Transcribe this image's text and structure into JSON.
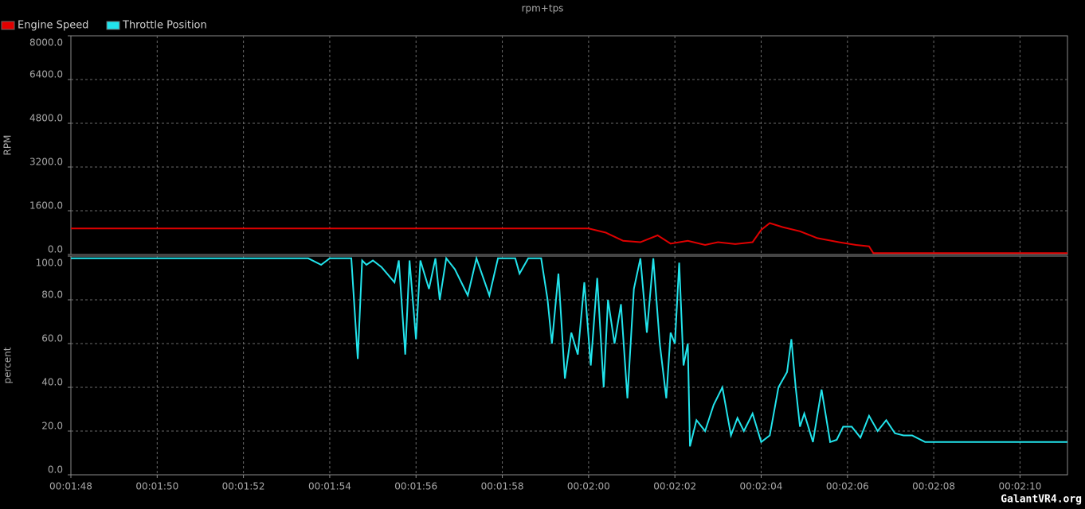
{
  "watermark": "GalantVR4.org",
  "chart_data": [
    {
      "type": "line",
      "title": "rpm+tps",
      "y_label": "RPM",
      "grid": true,
      "xlim": [
        108,
        131.1
      ],
      "ylim": [
        0,
        8000
      ],
      "yticks": [
        {
          "value": 0,
          "label": "0.0"
        },
        {
          "value": 1600,
          "label": "1600.0"
        },
        {
          "value": 3200,
          "label": "3200.0"
        },
        {
          "value": 4800,
          "label": "4800.0"
        },
        {
          "value": 6400,
          "label": "6400.0"
        },
        {
          "value": 8000,
          "label": "8000.0"
        }
      ],
      "x": [
        108,
        111,
        114,
        117,
        120,
        120.4,
        120.8,
        121.2,
        121.6,
        121.9,
        122.3,
        122.7,
        123.0,
        123.4,
        123.8,
        124.0,
        124.2,
        124.5,
        124.9,
        125.3,
        125.8,
        126.2,
        126.5,
        126.6,
        131.1
      ],
      "series": [
        {
          "name": "Engine Speed",
          "color": "#e00000",
          "values": [
            950,
            950,
            950,
            950,
            950,
            800,
            500,
            450,
            700,
            400,
            500,
            350,
            450,
            380,
            450,
            900,
            1150,
            1000,
            850,
            600,
            450,
            350,
            300,
            50,
            50
          ]
        }
      ]
    },
    {
      "type": "line",
      "y_label": "percent",
      "grid": true,
      "xlim": [
        108,
        131.1
      ],
      "xticks": [
        {
          "value": 108,
          "label": "00:01:48"
        },
        {
          "value": 110,
          "label": "00:01:50"
        },
        {
          "value": 112,
          "label": "00:01:52"
        },
        {
          "value": 114,
          "label": "00:01:54"
        },
        {
          "value": 116,
          "label": "00:01:56"
        },
        {
          "value": 118,
          "label": "00:01:58"
        },
        {
          "value": 120,
          "label": "00:02:00"
        },
        {
          "value": 122,
          "label": "00:02:02"
        },
        {
          "value": 124,
          "label": "00:02:04"
        },
        {
          "value": 126,
          "label": "00:02:06"
        },
        {
          "value": 128,
          "label": "00:02:08"
        },
        {
          "value": 130,
          "label": "00:02:10"
        }
      ],
      "ylim": [
        0,
        100
      ],
      "yticks": [
        {
          "value": 0,
          "label": "0.0"
        },
        {
          "value": 20,
          "label": "20.0"
        },
        {
          "value": 40,
          "label": "40.0"
        },
        {
          "value": 60,
          "label": "60.0"
        },
        {
          "value": 80,
          "label": "80.0"
        },
        {
          "value": 100,
          "label": "100.0"
        }
      ],
      "x": [
        108,
        110,
        112,
        113.5,
        113.8,
        114.0,
        114.5,
        114.65,
        114.75,
        114.85,
        115.0,
        115.2,
        115.5,
        115.6,
        115.75,
        115.85,
        116.0,
        116.1,
        116.3,
        116.45,
        116.55,
        116.7,
        116.9,
        117.2,
        117.4,
        117.7,
        117.9,
        118.3,
        118.4,
        118.6,
        118.9,
        119.05,
        119.15,
        119.3,
        119.45,
        119.6,
        119.75,
        119.9,
        120.05,
        120.2,
        120.35,
        120.45,
        120.6,
        120.75,
        120.9,
        121.05,
        121.2,
        121.35,
        121.5,
        121.65,
        121.8,
        121.9,
        122.0,
        122.1,
        122.2,
        122.3,
        122.35,
        122.5,
        122.7,
        122.9,
        123.1,
        123.3,
        123.45,
        123.6,
        123.8,
        124.0,
        124.2,
        124.4,
        124.6,
        124.7,
        124.8,
        124.9,
        125.0,
        125.2,
        125.4,
        125.6,
        125.75,
        125.9,
        126.1,
        126.3,
        126.5,
        126.7,
        126.9,
        127.1,
        127.3,
        127.5,
        127.8,
        128.0,
        131.1
      ],
      "series": [
        {
          "name": "Throttle Position",
          "color": "#22e4ec",
          "values": [
            99,
            99,
            99,
            99,
            96,
            99,
            99,
            53,
            98,
            96,
            98,
            95,
            88,
            98,
            55,
            98,
            62,
            98,
            85,
            99,
            80,
            99,
            94,
            82,
            99,
            82,
            99,
            99,
            92,
            99,
            99,
            80,
            60,
            92,
            44,
            65,
            55,
            88,
            50,
            90,
            40,
            80,
            60,
            78,
            35,
            85,
            99,
            65,
            99,
            60,
            35,
            65,
            60,
            97,
            50,
            60,
            13,
            25,
            20,
            32,
            40,
            18,
            26,
            20,
            28,
            15,
            18,
            40,
            47,
            62,
            40,
            22,
            28,
            15,
            39,
            15,
            16,
            22,
            22,
            17,
            27,
            20,
            25,
            19,
            18,
            18,
            15,
            15,
            15
          ]
        }
      ]
    }
  ]
}
